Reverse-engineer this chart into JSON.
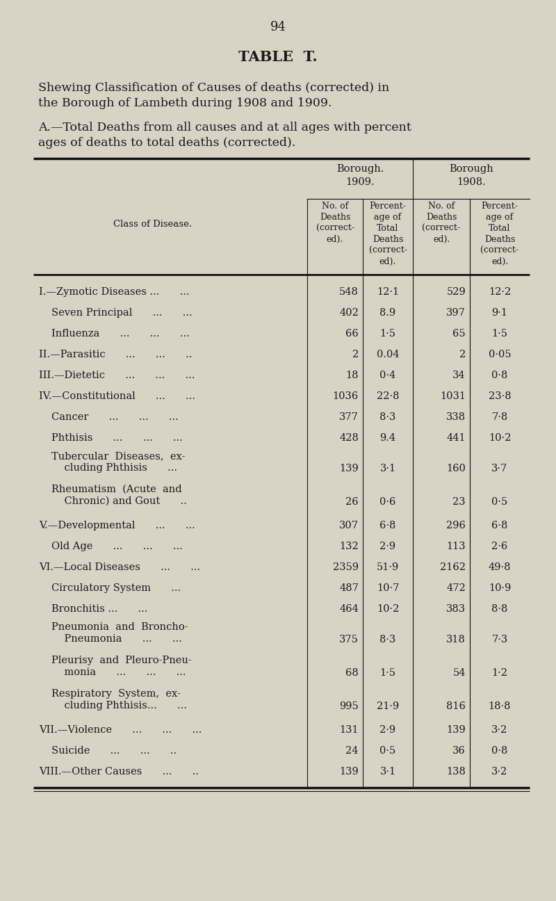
{
  "page_number": "94",
  "title": "TABLE  T.",
  "subtitle1": "Shewing Classification of Causes of deaths (corrected) in the Borough of Lambeth during 1908 and 1909.",
  "subtitle3": "A.—Total Deaths from all causes and at all ages with percentages of deaths to total deaths (corrected).",
  "bg_color": "#d8d3c5",
  "text_color": "#1a1a1a",
  "line_color": "#111111",
  "rows": [
    {
      "label": "I.—Zymotic Diseases ...  ...",
      "indent": 0,
      "d1909": "548",
      "p1909": "12·1",
      "d1908": "529",
      "p1908": "12·2",
      "twolines": false
    },
    {
      "label": "Seven Principal  ...  ...",
      "indent": 1,
      "d1909": "402",
      "p1909": "8.9",
      "d1908": "397",
      "p1908": "9·1",
      "twolines": false
    },
    {
      "label": "Influenza  ...  ...  ...",
      "indent": 1,
      "d1909": "66",
      "p1909": "1·5",
      "d1908": "65",
      "p1908": "1·5",
      "twolines": false
    },
    {
      "label": "II.—Parasitic  ...  ...  ..",
      "indent": 0,
      "d1909": "2",
      "p1909": "0.04",
      "d1908": "2",
      "p1908": "0·05",
      "twolines": false
    },
    {
      "label": "III.—Dietetic  ...  ...  ...",
      "indent": 0,
      "d1909": "18",
      "p1909": "0·4",
      "d1908": "34",
      "p1908": "0·8",
      "twolines": false
    },
    {
      "label": "IV.—Constitutional  ...  ...",
      "indent": 0,
      "d1909": "1036",
      "p1909": "22·8",
      "d1908": "1031",
      "p1908": "23·8",
      "twolines": false
    },
    {
      "label": "Cancer  ...  ...  ...",
      "indent": 1,
      "d1909": "377",
      "p1909": "8·3",
      "d1908": "338",
      "p1908": "7·8",
      "twolines": false
    },
    {
      "label": "Phthisis  ...  ...  ...",
      "indent": 1,
      "d1909": "428",
      "p1909": "9.4",
      "d1908": "441",
      "p1908": "10·2",
      "twolines": false
    },
    {
      "label1": "Tubercular  Diseases,  ex-",
      "label2": "    cluding Phthisis  ...",
      "indent": 1,
      "d1909": "139",
      "p1909": "3·1",
      "d1908": "160",
      "p1908": "3·7",
      "twolines": true
    },
    {
      "label1": "Rheumatism  (Acute  and",
      "label2": "    Chronic) and Gout  ..",
      "indent": 1,
      "d1909": "26",
      "p1909": "0·6",
      "d1908": "23",
      "p1908": "0·5",
      "twolines": true
    },
    {
      "label": "V.—Developmental  ...  ...",
      "indent": 0,
      "d1909": "307",
      "p1909": "6·8",
      "d1908": "296",
      "p1908": "6·8",
      "twolines": false
    },
    {
      "label": "Old Age  ...  ...  ...",
      "indent": 1,
      "d1909": "132",
      "p1909": "2·9",
      "d1908": "113",
      "p1908": "2·6",
      "twolines": false
    },
    {
      "label": "VI.—Local Diseases  ...  ...",
      "indent": 0,
      "d1909": "2359",
      "p1909": "51·9",
      "d1908": "2162",
      "p1908": "49·8",
      "twolines": false
    },
    {
      "label": "Circulatory System  ...",
      "indent": 1,
      "d1909": "487",
      "p1909": "10·7",
      "d1908": "472",
      "p1908": "10·9",
      "twolines": false
    },
    {
      "label": "Bronchitis ...  ...",
      "indent": 1,
      "d1909": "464",
      "p1909": "10·2",
      "d1908": "383",
      "p1908": "8·8",
      "twolines": false
    },
    {
      "label1": "Pneumonia  and  Broncho-",
      "label2": "    Pneumonia  ...  ...",
      "indent": 1,
      "d1909": "375",
      "p1909": "8·3",
      "d1908": "318",
      "p1908": "7·3",
      "twolines": true
    },
    {
      "label1": "Pleurisy  and  Pleuro-Pneu-",
      "label2": "    monia  ...  ...  ...",
      "indent": 1,
      "d1909": "68",
      "p1909": "1·5",
      "d1908": "54",
      "p1908": "1·2",
      "twolines": true
    },
    {
      "label1": "Respiratory  System,  ex-",
      "label2": "    cluding Phthisis...  ...",
      "indent": 1,
      "d1909": "995",
      "p1909": "21·9",
      "d1908": "816",
      "p1908": "18·8",
      "twolines": true
    },
    {
      "label": "VII.—Violence  ...  ...  ...",
      "indent": 0,
      "d1909": "131",
      "p1909": "2·9",
      "d1908": "139",
      "p1908": "3·2",
      "twolines": false
    },
    {
      "label": "Suicide  ...  ...  ..",
      "indent": 1,
      "d1909": "24",
      "p1909": "0·5",
      "d1908": "36",
      "p1908": "0·8",
      "twolines": false
    },
    {
      "label": "VIII.—Other Causes  ...  ..",
      "indent": 0,
      "d1909": "139",
      "p1909": "3·1",
      "d1908": "138",
      "p1908": "3·2",
      "twolines": false
    }
  ]
}
